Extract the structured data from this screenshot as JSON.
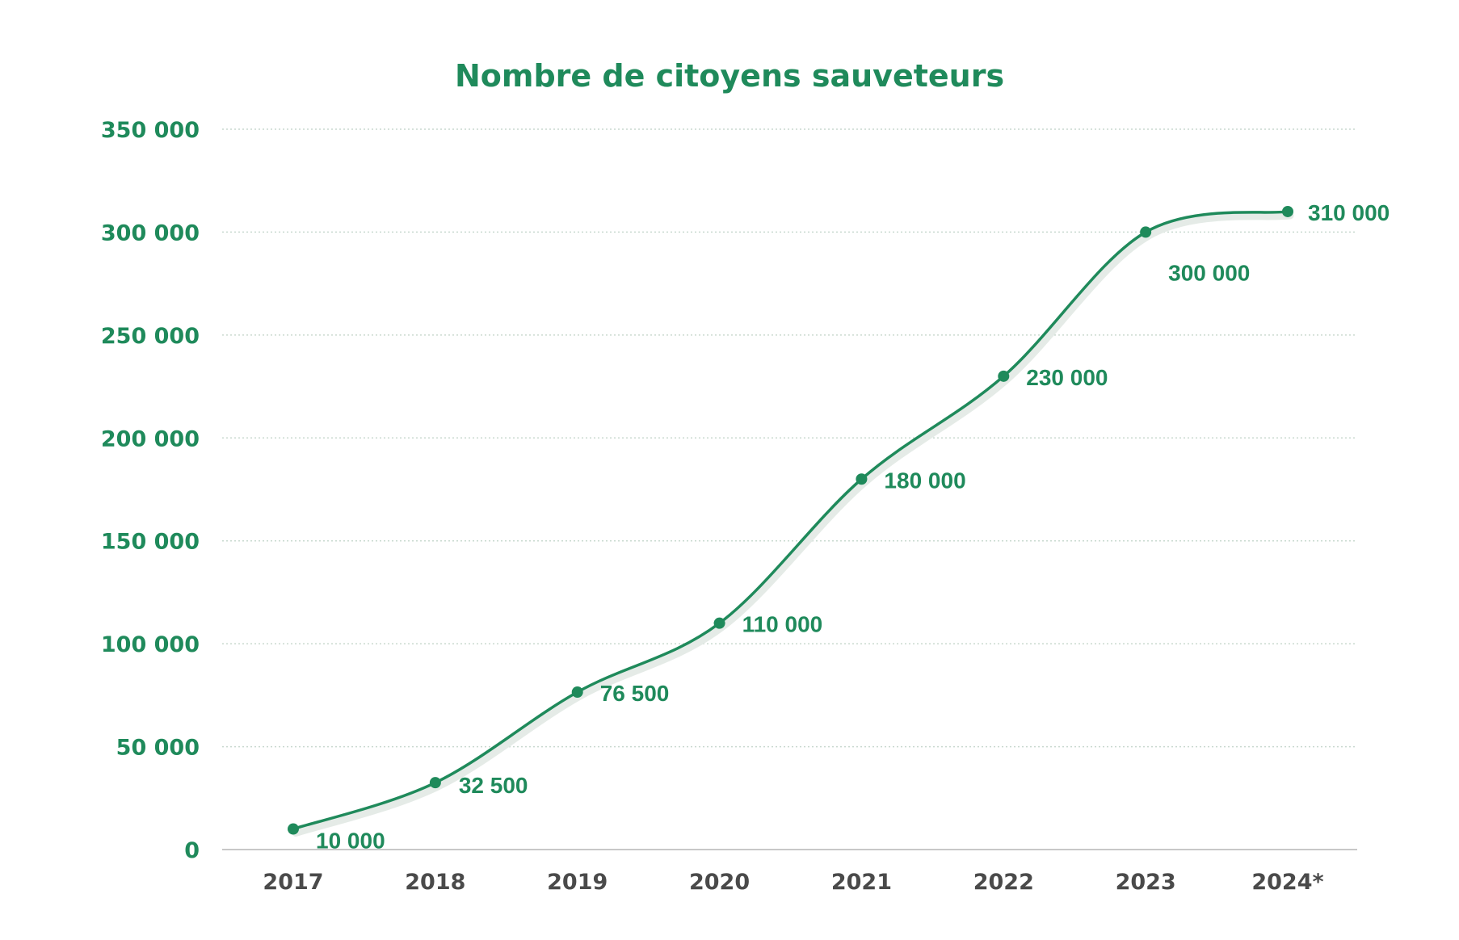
{
  "colors": {
    "accent": "#1f8a5b",
    "axis_text": "#4a4a4a",
    "gridline": "#c9d9cf",
    "baseline": "#c8c8c8",
    "shadow": "#e5ebe7"
  },
  "chart_data": {
    "type": "line",
    "title": "Nombre de citoyens sauveteurs",
    "xlabel": "",
    "ylabel": "",
    "categories": [
      "2017",
      "2018",
      "2019",
      "2020",
      "2021",
      "2022",
      "2023",
      "2024*"
    ],
    "series": [
      {
        "name": "Nombre de citoyens sauveteurs",
        "values": [
          10000,
          32500,
          76500,
          110000,
          180000,
          230000,
          300000,
          310000
        ],
        "labels": [
          "10 000",
          "32 500",
          "76 500",
          "110 000",
          "180 000",
          "230 000",
          "300 000",
          "310 000"
        ]
      }
    ],
    "ylim": [
      0,
      350000
    ],
    "yticks": [
      0,
      50000,
      100000,
      150000,
      200000,
      250000,
      300000,
      350000
    ],
    "ytick_labels": [
      "0",
      "50 000",
      "100 000",
      "150 000",
      "200 000",
      "250 000",
      "300 000",
      "350 000"
    ],
    "grid": true,
    "legend": "none"
  }
}
